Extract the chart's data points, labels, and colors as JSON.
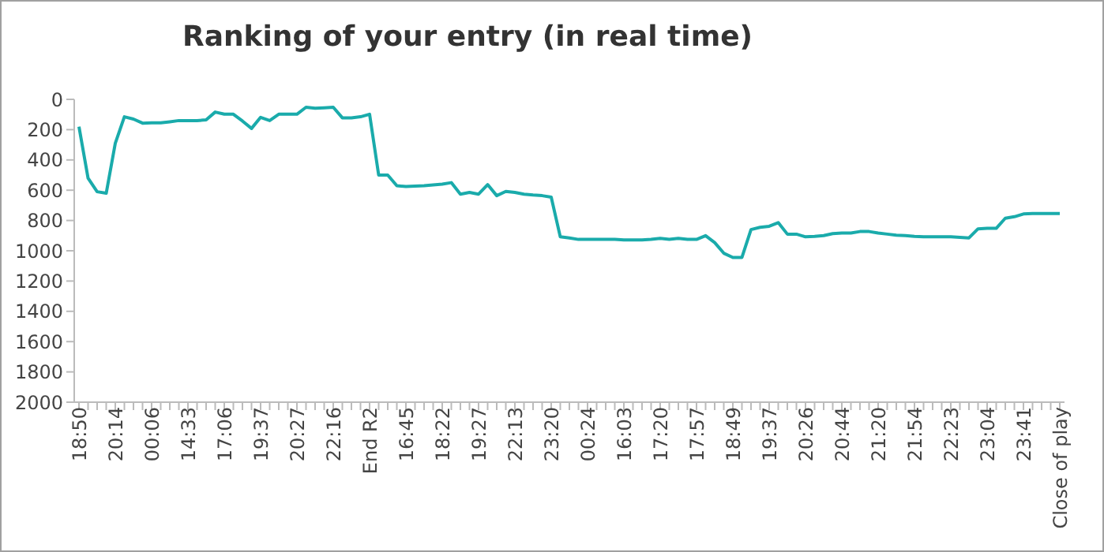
{
  "chart_data": {
    "type": "line",
    "title": "Ranking of your entry (in real time)",
    "categories": [
      "18:50",
      null,
      null,
      null,
      "20:14",
      null,
      null,
      null,
      "00:06",
      null,
      null,
      null,
      "14:33",
      null,
      null,
      null,
      "17:06",
      null,
      null,
      null,
      "19:37",
      null,
      null,
      null,
      "20:27",
      null,
      null,
      null,
      "22:16",
      null,
      null,
      null,
      "End R2",
      null,
      null,
      null,
      "16:45",
      null,
      null,
      null,
      "18:22",
      null,
      null,
      null,
      "19:27",
      null,
      null,
      null,
      "22:13",
      null,
      null,
      null,
      "23:20",
      null,
      null,
      null,
      "00:24",
      null,
      null,
      null,
      "16:03",
      null,
      null,
      null,
      "17:20",
      null,
      null,
      null,
      "17:57",
      null,
      null,
      null,
      "18:49",
      null,
      null,
      null,
      "19:37",
      null,
      null,
      null,
      "20:26",
      null,
      null,
      null,
      "20:44",
      null,
      null,
      null,
      "21:20",
      null,
      null,
      null,
      "21:54",
      null,
      null,
      null,
      "22:23",
      null,
      null,
      null,
      "23:04",
      null,
      null,
      null,
      "23:41",
      null,
      null,
      null,
      "Close of play"
    ],
    "series": [
      {
        "color": "#1aabab",
        "values": [
          180,
          520,
          610,
          620,
          290,
          115,
          130,
          157,
          155,
          155,
          148,
          140,
          140,
          140,
          136,
          84,
          98,
          98,
          143,
          192,
          119,
          140,
          98,
          98,
          98,
          52,
          59,
          56,
          52,
          122,
          122,
          115,
          98,
          500,
          500,
          570,
          576,
          573,
          570,
          565,
          560,
          550,
          626,
          615,
          626,
          563,
          636,
          608,
          615,
          626,
          632,
          636,
          646,
          908,
          915,
          925,
          925,
          925,
          925,
          925,
          928,
          928,
          928,
          925,
          918,
          925,
          918,
          925,
          925,
          900,
          946,
          1016,
          1044,
          1044,
          860,
          845,
          838,
          814,
          890,
          890,
          908,
          905,
          900,
          887,
          883,
          883,
          873,
          873,
          883,
          890,
          897,
          900,
          905,
          908,
          908,
          908,
          908,
          911,
          915,
          855,
          852,
          852,
          785,
          775,
          757,
          754,
          754,
          754,
          754
        ]
      }
    ],
    "ylim": [
      2000,
      0
    ],
    "yticks": [
      0,
      200,
      400,
      600,
      800,
      1000,
      1200,
      1400,
      1600,
      1800,
      2000
    ],
    "grid": false,
    "legend": false,
    "marker": "none",
    "line_style": "solid"
  }
}
